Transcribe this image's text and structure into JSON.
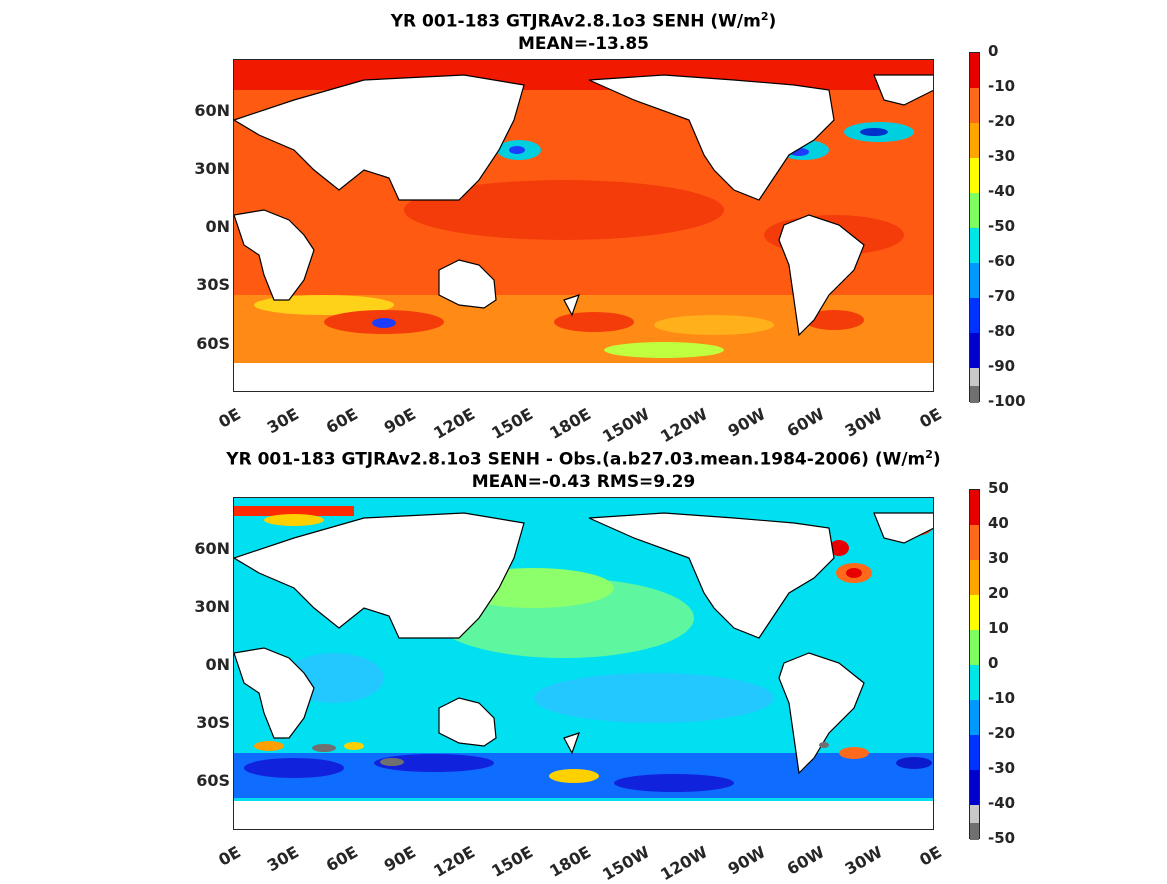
{
  "panel1": {
    "title_main": "YR 001-183 GTJRAv2.8.1o3  SENH (W/m",
    "title_sup": "2",
    "title_end": ")",
    "subtitle": "MEAN=-13.85",
    "ylabels": [
      "60N",
      "30N",
      "0N",
      "30S",
      "60S"
    ],
    "xlabels": [
      "0E",
      "30E",
      "60E",
      "90E",
      "120E",
      "150E",
      "180E",
      "150W",
      "120W",
      "90W",
      "60W",
      "30W",
      "0E"
    ],
    "colorbar_ticks": [
      "0",
      "-10",
      "-20",
      "-30",
      "-40",
      "-50",
      "-60",
      "-70",
      "-80",
      "-90",
      "-100"
    ],
    "colorbar_colors": [
      "#e60000",
      "#ff6a1a",
      "#ffa500",
      "#ffff00",
      "#7fff5f",
      "#00e5e5",
      "#0099ff",
      "#0033ff",
      "#0000cc",
      "#c8c8c8",
      "#707070"
    ]
  },
  "panel2": {
    "title_main": "YR 001-183 GTJRAv2.8.1o3 SENH - Obs.(a.b27.03.mean.1984-2006) (W/m",
    "title_sup": "2",
    "title_end": ")",
    "subtitle": "MEAN=-0.43 RMS=9.29",
    "ylabels": [
      "60N",
      "30N",
      "0N",
      "30S",
      "60S"
    ],
    "xlabels": [
      "0E",
      "30E",
      "60E",
      "90E",
      "120E",
      "150E",
      "180E",
      "150W",
      "120W",
      "90W",
      "60W",
      "30W",
      "0E"
    ],
    "colorbar_ticks": [
      "50",
      "40",
      "30",
      "20",
      "10",
      "0",
      "-10",
      "-20",
      "-30",
      "-40",
      "-50"
    ],
    "colorbar_colors": [
      "#e60000",
      "#ff6a1a",
      "#ffa500",
      "#ffff00",
      "#7fff5f",
      "#00e5e5",
      "#0099ff",
      "#0033ff",
      "#0000cc",
      "#c8c8c8",
      "#707070"
    ]
  }
}
